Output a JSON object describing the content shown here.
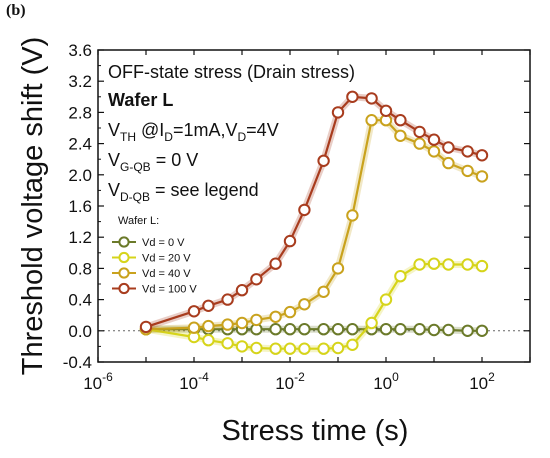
{
  "panel_label": "(b)",
  "chart_data": {
    "type": "line",
    "xlabel": "Stress time (s)",
    "ylabel": "Threshold voltage shift (V)",
    "x_scale": "log",
    "x_ticks": [
      {
        "value": 1e-06,
        "base": "10",
        "exp": "-6"
      },
      {
        "value": 0.0001,
        "base": "10",
        "exp": "-4"
      },
      {
        "value": 0.01,
        "base": "10",
        "exp": "-2"
      },
      {
        "value": 1,
        "base": "10",
        "exp": "0"
      },
      {
        "value": 100,
        "base": "10",
        "exp": "2"
      }
    ],
    "xlim": [
      1e-06,
      1000
    ],
    "ylim": [
      -0.4,
      3.6
    ],
    "y_ticks": [
      "-0.4",
      "0.0",
      "0.4",
      "0.8",
      "1.2",
      "1.6",
      "2.0",
      "2.4",
      "2.8",
      "3.2",
      "3.6"
    ],
    "reference_line_y": 0,
    "annotations": {
      "line1": "OFF-state stress (Drain stress)",
      "line2": "Wafer L",
      "line3": {
        "pre": "V",
        "sub1": "TH",
        "mid": " @I",
        "sub2": "D",
        "mid2": "=1mA,V",
        "sub3": "D",
        "post": "=4V"
      },
      "line4": {
        "pre": "V",
        "sub": "G-QB",
        "post": " = 0 V"
      },
      "line5": {
        "pre": "V",
        "sub": "D-QB",
        "post": " = see legend"
      }
    },
    "legend_title": "Wafer L:",
    "legend_position": "left",
    "series": [
      {
        "name": "Vd = 0 V",
        "color": "#6b7a2a",
        "x": [
          1e-05,
          0.0001,
          0.0002,
          0.0005,
          0.001,
          0.002,
          0.005,
          0.01,
          0.02,
          0.05,
          0.1,
          0.2,
          0.5,
          1,
          2,
          5,
          10,
          20,
          50,
          100
        ],
        "y": [
          0.02,
          0.02,
          0.02,
          0.02,
          0.02,
          0.02,
          0.02,
          0.02,
          0.02,
          0.02,
          0.02,
          0.02,
          0.02,
          0.02,
          0.02,
          0.02,
          0.01,
          0.01,
          0.0,
          0.0
        ]
      },
      {
        "name": "Vd = 20 V",
        "color": "#d6d41a",
        "x": [
          1e-05,
          0.0001,
          0.0002,
          0.0005,
          0.001,
          0.002,
          0.005,
          0.01,
          0.02,
          0.05,
          0.1,
          0.2,
          0.5,
          1,
          2,
          5,
          10,
          20,
          50,
          100
        ],
        "y": [
          0.02,
          -0.08,
          -0.12,
          -0.16,
          -0.2,
          -0.22,
          -0.23,
          -0.23,
          -0.23,
          -0.23,
          -0.22,
          -0.18,
          0.1,
          0.4,
          0.7,
          0.85,
          0.86,
          0.85,
          0.85,
          0.83
        ]
      },
      {
        "name": "Vd = 40 V",
        "color": "#c9a21d",
        "x": [
          1e-05,
          0.0001,
          0.0002,
          0.0005,
          0.001,
          0.002,
          0.005,
          0.01,
          0.02,
          0.05,
          0.1,
          0.2,
          0.5,
          1,
          2,
          5,
          10,
          20,
          50,
          100
        ],
        "y": [
          0.02,
          0.04,
          0.06,
          0.08,
          0.1,
          0.14,
          0.18,
          0.24,
          0.34,
          0.5,
          0.8,
          1.48,
          2.7,
          2.7,
          2.5,
          2.4,
          2.3,
          2.15,
          2.05,
          1.98
        ]
      },
      {
        "name": "Vd = 100 V",
        "color": "#a83c1e",
        "x": [
          1e-05,
          0.0001,
          0.0002,
          0.0005,
          0.001,
          0.002,
          0.005,
          0.01,
          0.02,
          0.05,
          0.1,
          0.2,
          0.5,
          1,
          2,
          5,
          10,
          20,
          50,
          100
        ],
        "y": [
          0.05,
          0.25,
          0.32,
          0.4,
          0.52,
          0.66,
          0.86,
          1.15,
          1.55,
          2.18,
          2.8,
          3.0,
          2.98,
          2.82,
          2.7,
          2.55,
          2.45,
          2.35,
          2.3,
          2.25
        ]
      }
    ]
  }
}
